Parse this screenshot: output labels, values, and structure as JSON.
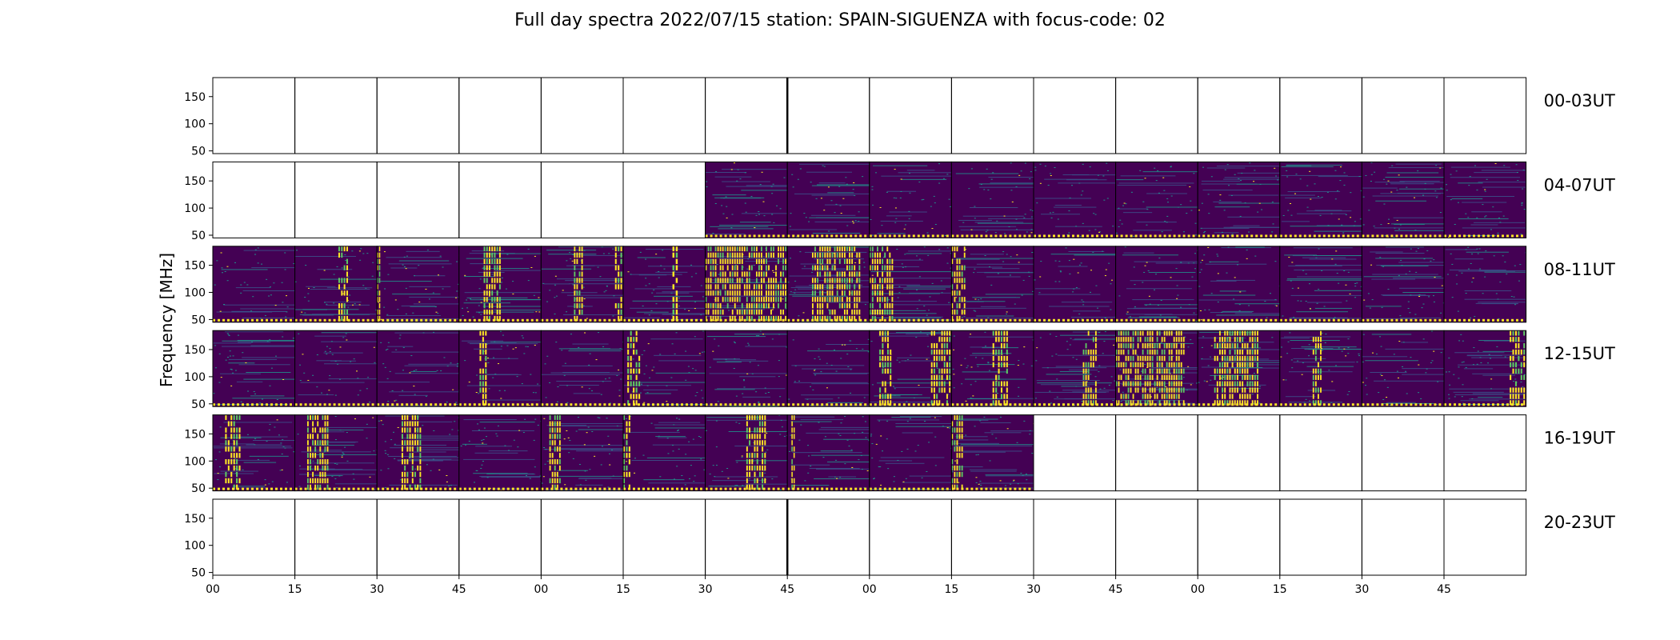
{
  "chart_data": {
    "type": "heatmap",
    "title": "Full day spectra 2022/07/15 station: SPAIN-SIGUENZA with focus-code: 02",
    "ylabel": "Frequency [MHz]",
    "xlabel": "",
    "yticks": [
      50,
      100,
      150
    ],
    "ylim": [
      45,
      185
    ],
    "colormap": [
      "#440154",
      "#3b528b",
      "#21918c",
      "#5ec962",
      "#fde725"
    ],
    "rows": [
      {
        "label": "00-03UT",
        "panels": [
          0,
          0,
          0,
          0,
          0,
          0,
          0,
          0,
          0,
          0,
          0,
          0,
          0,
          0,
          0,
          0
        ],
        "bursts": []
      },
      {
        "label": "04-07UT",
        "panels": [
          0,
          0,
          0,
          0,
          0,
          0,
          1,
          1,
          1,
          1,
          1,
          1,
          1,
          1,
          1,
          1
        ],
        "bursts": []
      },
      {
        "label": "08-11UT",
        "panels": [
          1,
          1,
          1,
          1,
          1,
          1,
          1,
          1,
          1,
          1,
          1,
          1,
          1,
          1,
          1,
          1
        ],
        "bursts": [
          {
            "panel": 1,
            "start": 0.53,
            "end": 0.66
          },
          {
            "panel": 2,
            "start": 0.0,
            "end": 0.05
          },
          {
            "panel": 3,
            "start": 0.3,
            "end": 0.52
          },
          {
            "panel": 4,
            "start": 0.4,
            "end": 0.52
          },
          {
            "panel": 4,
            "start": 0.9,
            "end": 1.0
          },
          {
            "panel": 5,
            "start": 0.6,
            "end": 0.68
          },
          {
            "panel": 6,
            "start": 0.0,
            "end": 1.0
          },
          {
            "panel": 7,
            "start": 0.3,
            "end": 0.9
          },
          {
            "panel": 8,
            "start": 0.0,
            "end": 0.3
          },
          {
            "panel": 9,
            "start": 0.0,
            "end": 0.18
          }
        ]
      },
      {
        "label": "12-15UT",
        "panels": [
          1,
          1,
          1,
          1,
          1,
          1,
          1,
          1,
          1,
          1,
          1,
          1,
          1,
          1,
          1,
          1
        ],
        "bursts": [
          {
            "panel": 3,
            "start": 0.25,
            "end": 0.35
          },
          {
            "panel": 5,
            "start": 0.05,
            "end": 0.22
          },
          {
            "panel": 8,
            "start": 0.12,
            "end": 0.28
          },
          {
            "panel": 8,
            "start": 0.75,
            "end": 1.0
          },
          {
            "panel": 9,
            "start": 0.5,
            "end": 0.7
          },
          {
            "panel": 10,
            "start": 0.6,
            "end": 0.78
          },
          {
            "panel": 11,
            "start": 0.0,
            "end": 0.85
          },
          {
            "panel": 12,
            "start": 0.2,
            "end": 0.75
          },
          {
            "panel": 13,
            "start": 0.4,
            "end": 0.52
          },
          {
            "panel": 15,
            "start": 0.8,
            "end": 1.0
          }
        ]
      },
      {
        "label": "16-19UT",
        "panels": [
          1,
          1,
          1,
          1,
          1,
          1,
          1,
          1,
          1,
          1,
          0,
          0,
          0,
          0,
          0,
          0
        ],
        "bursts": [
          {
            "panel": 0,
            "start": 0.15,
            "end": 0.35
          },
          {
            "panel": 1,
            "start": 0.15,
            "end": 0.42
          },
          {
            "panel": 2,
            "start": 0.3,
            "end": 0.55
          },
          {
            "panel": 4,
            "start": 0.1,
            "end": 0.25
          },
          {
            "panel": 5,
            "start": 0.0,
            "end": 0.1
          },
          {
            "panel": 6,
            "start": 0.5,
            "end": 0.75
          },
          {
            "panel": 7,
            "start": 0.05,
            "end": 0.1
          },
          {
            "panel": 9,
            "start": 0.0,
            "end": 0.15
          }
        ]
      },
      {
        "label": "20-23UT",
        "panels": [
          0,
          0,
          0,
          0,
          0,
          0,
          0,
          0,
          0,
          0,
          0,
          0,
          0,
          0,
          0,
          0
        ],
        "bursts": []
      }
    ],
    "xticks": [
      "00",
      "15",
      "30",
      "45",
      "00",
      "15",
      "30",
      "45",
      "00",
      "15",
      "30",
      "45",
      "00",
      "15",
      "30",
      "45"
    ]
  }
}
